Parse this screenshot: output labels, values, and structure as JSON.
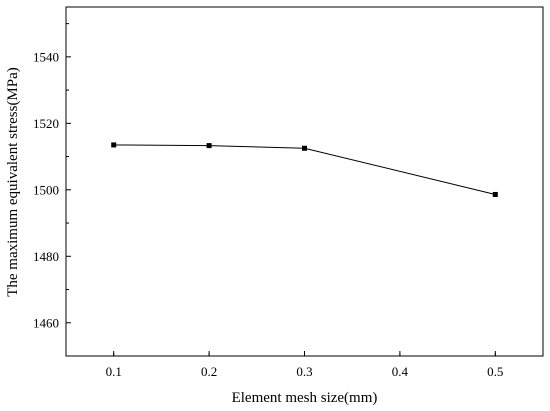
{
  "chart_data": {
    "type": "line",
    "title": "",
    "xlabel": "Element mesh size(mm)",
    "ylabel": "The maximum equivalent stress(MPa)",
    "xlim": [
      0.05,
      0.55
    ],
    "ylim": [
      1450,
      1555
    ],
    "x_ticks": [
      0.1,
      0.2,
      0.3,
      0.4,
      0.5
    ],
    "x_tick_labels": [
      "0.1",
      "0.2",
      "0.3",
      "0.4",
      "0.5"
    ],
    "y_ticks": [
      1460,
      1480,
      1500,
      1520,
      1540
    ],
    "y_tick_labels": [
      "1460",
      "1480",
      "1500",
      "1520",
      "1540"
    ],
    "grid": false,
    "legend": "none",
    "series": [
      {
        "x": [
          0.1,
          0.2,
          0.3,
          0.5
        ],
        "y": [
          1513.5,
          1513.3,
          1512.5,
          1498.6
        ],
        "color": "#000000",
        "marker": "square"
      }
    ]
  }
}
